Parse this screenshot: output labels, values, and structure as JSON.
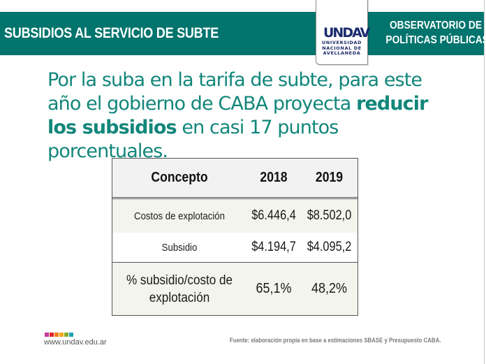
{
  "header": {
    "title": "SUBSIDIOS AL SERVICIO DE SUBTE",
    "observatory_line1": "OBSERVATORIO DE",
    "observatory_line2": "POLÍTICAS PÚBLICAS",
    "band_color": "#00746d"
  },
  "logo": {
    "mark": "UNDAV",
    "line1": "UNIVERSIDAD",
    "line2": "NACIONAL DE",
    "line3": "AVELLANEDA",
    "color": "#1a2b6d"
  },
  "headline": {
    "part1": "Por la suba en la tarifa de subte, para este año el gobierno de CABA proyecta ",
    "bold1": "reducir los subsidios",
    "part2": " en casi 17 puntos porcentuales.",
    "color": "#11867a"
  },
  "table": {
    "columns": [
      "Concepto",
      "2018",
      "2019"
    ],
    "rows": [
      {
        "concepto": "Costos de explotación",
        "y2018": "$6.446,4",
        "y2019": "$8.502,0"
      },
      {
        "concepto": "Subsidio",
        "y2018": "$4.194,7",
        "y2019": "$4.095,2"
      },
      {
        "concepto": "% subsidio/costo de explotación",
        "y2018": "65,1%",
        "y2019": "48,2%"
      }
    ]
  },
  "footer": {
    "site_url": "www.undav.edu.ar",
    "source": "Fuente: elaboración propia en base a estimaciones SBASE y Presupuesto CABA.",
    "dot_colors": [
      "#c2399a",
      "#e0252b",
      "#f07d1a",
      "#f2a71b",
      "#8aaa2a",
      "#1fa5b4"
    ]
  }
}
